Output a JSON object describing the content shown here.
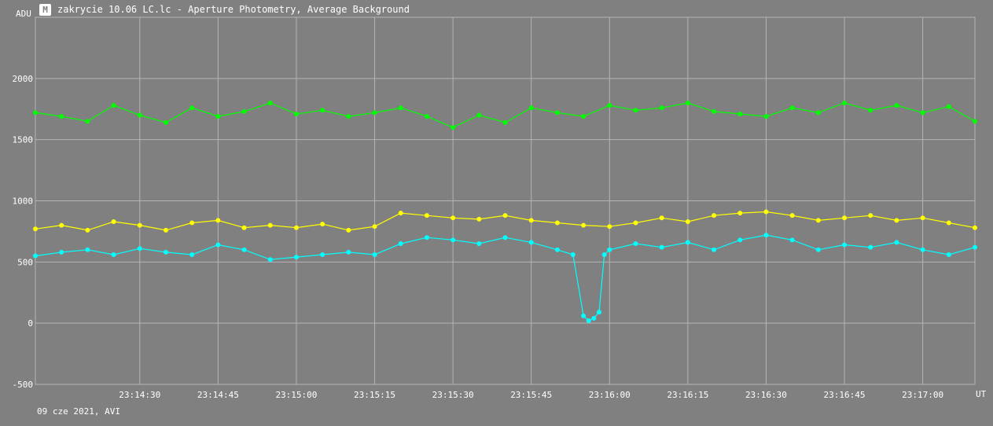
{
  "window": {
    "title": "zakrycie 10.06 LC.lc - Aperture Photometry, Average Background",
    "icon": "app-logo-icon"
  },
  "footer": {
    "info": "09 cze 2021, AVI"
  },
  "colors": {
    "background": "#808080",
    "grid": "#b4b4b4",
    "text": "#ffffff"
  },
  "chart_data": {
    "type": "line",
    "title": "",
    "ylabel": "ADU",
    "xlabel": "UT",
    "ylim": [
      -500,
      2500
    ],
    "yticks": [
      {
        "v": -500,
        "label": "-500"
      },
      {
        "v": 0,
        "label": "0"
      },
      {
        "v": 500,
        "label": "500"
      },
      {
        "v": 1000,
        "label": "1000"
      },
      {
        "v": 1500,
        "label": "1500"
      },
      {
        "v": 2000,
        "label": "2000"
      }
    ],
    "xlim": [
      "23:14:10",
      "23:17:10"
    ],
    "xticks": [
      "23:14:30",
      "23:14:45",
      "23:15:00",
      "23:15:15",
      "23:15:30",
      "23:15:45",
      "23:16:00",
      "23:16:15",
      "23:16:30",
      "23:16:45",
      "23:17:00"
    ],
    "grid": true,
    "series": [
      {
        "color": "#00ff00",
        "style": "line+markers",
        "points": [
          [
            "23:14:10",
            1720
          ],
          [
            "23:14:15",
            1690
          ],
          [
            "23:14:20",
            1650
          ],
          [
            "23:14:25",
            1780
          ],
          [
            "23:14:30",
            1700
          ],
          [
            "23:14:35",
            1640
          ],
          [
            "23:14:40",
            1760
          ],
          [
            "23:14:45",
            1690
          ],
          [
            "23:14:50",
            1730
          ],
          [
            "23:14:55",
            1800
          ],
          [
            "23:15:00",
            1710
          ],
          [
            "23:15:05",
            1740
          ],
          [
            "23:15:10",
            1690
          ],
          [
            "23:15:15",
            1720
          ],
          [
            "23:15:20",
            1760
          ],
          [
            "23:15:25",
            1690
          ],
          [
            "23:15:30",
            1600
          ],
          [
            "23:15:35",
            1700
          ],
          [
            "23:15:40",
            1640
          ],
          [
            "23:15:45",
            1760
          ],
          [
            "23:15:50",
            1720
          ],
          [
            "23:15:55",
            1690
          ],
          [
            "23:16:00",
            1780
          ],
          [
            "23:16:05",
            1740
          ],
          [
            "23:16:10",
            1760
          ],
          [
            "23:16:15",
            1800
          ],
          [
            "23:16:20",
            1730
          ],
          [
            "23:16:25",
            1710
          ],
          [
            "23:16:30",
            1690
          ],
          [
            "23:16:35",
            1760
          ],
          [
            "23:16:40",
            1720
          ],
          [
            "23:16:45",
            1800
          ],
          [
            "23:16:50",
            1740
          ],
          [
            "23:16:55",
            1780
          ],
          [
            "23:17:00",
            1720
          ],
          [
            "23:17:05",
            1770
          ],
          [
            "23:17:10",
            1650
          ]
        ]
      },
      {
        "color": "#ffff00",
        "style": "line+markers",
        "points": [
          [
            "23:14:10",
            770
          ],
          [
            "23:14:15",
            800
          ],
          [
            "23:14:20",
            760
          ],
          [
            "23:14:25",
            830
          ],
          [
            "23:14:30",
            800
          ],
          [
            "23:14:35",
            760
          ],
          [
            "23:14:40",
            820
          ],
          [
            "23:14:45",
            840
          ],
          [
            "23:14:50",
            780
          ],
          [
            "23:14:55",
            800
          ],
          [
            "23:15:00",
            780
          ],
          [
            "23:15:05",
            810
          ],
          [
            "23:15:10",
            760
          ],
          [
            "23:15:15",
            790
          ],
          [
            "23:15:20",
            900
          ],
          [
            "23:15:25",
            880
          ],
          [
            "23:15:30",
            860
          ],
          [
            "23:15:35",
            850
          ],
          [
            "23:15:40",
            880
          ],
          [
            "23:15:45",
            840
          ],
          [
            "23:15:50",
            820
          ],
          [
            "23:15:55",
            800
          ],
          [
            "23:16:00",
            790
          ],
          [
            "23:16:05",
            820
          ],
          [
            "23:16:10",
            860
          ],
          [
            "23:16:15",
            830
          ],
          [
            "23:16:20",
            880
          ],
          [
            "23:16:25",
            900
          ],
          [
            "23:16:30",
            910
          ],
          [
            "23:16:35",
            880
          ],
          [
            "23:16:40",
            840
          ],
          [
            "23:16:45",
            860
          ],
          [
            "23:16:50",
            880
          ],
          [
            "23:16:55",
            840
          ],
          [
            "23:17:00",
            860
          ],
          [
            "23:17:05",
            820
          ],
          [
            "23:17:10",
            780
          ]
        ]
      },
      {
        "color": "#00ffff",
        "style": "line+markers",
        "points": [
          [
            "23:14:10",
            550
          ],
          [
            "23:14:15",
            580
          ],
          [
            "23:14:20",
            600
          ],
          [
            "23:14:25",
            560
          ],
          [
            "23:14:30",
            610
          ],
          [
            "23:14:35",
            580
          ],
          [
            "23:14:40",
            560
          ],
          [
            "23:14:45",
            640
          ],
          [
            "23:14:50",
            600
          ],
          [
            "23:14:55",
            520
          ],
          [
            "23:15:00",
            540
          ],
          [
            "23:15:05",
            560
          ],
          [
            "23:15:10",
            580
          ],
          [
            "23:15:15",
            560
          ],
          [
            "23:15:20",
            650
          ],
          [
            "23:15:25",
            700
          ],
          [
            "23:15:30",
            680
          ],
          [
            "23:15:35",
            650
          ],
          [
            "23:15:40",
            700
          ],
          [
            "23:15:45",
            660
          ],
          [
            "23:15:50",
            600
          ],
          [
            "23:15:53",
            560
          ],
          [
            "23:15:55",
            60
          ],
          [
            "23:15:56",
            20
          ],
          [
            "23:15:57",
            40
          ],
          [
            "23:15:58",
            90
          ],
          [
            "23:15:59",
            560
          ],
          [
            "23:16:00",
            600
          ],
          [
            "23:16:05",
            650
          ],
          [
            "23:16:10",
            620
          ],
          [
            "23:16:15",
            660
          ],
          [
            "23:16:20",
            600
          ],
          [
            "23:16:25",
            680
          ],
          [
            "23:16:30",
            720
          ],
          [
            "23:16:35",
            680
          ],
          [
            "23:16:40",
            600
          ],
          [
            "23:16:45",
            640
          ],
          [
            "23:16:50",
            620
          ],
          [
            "23:16:55",
            660
          ],
          [
            "23:17:00",
            600
          ],
          [
            "23:17:05",
            560
          ],
          [
            "23:17:10",
            620
          ]
        ]
      }
    ]
  }
}
